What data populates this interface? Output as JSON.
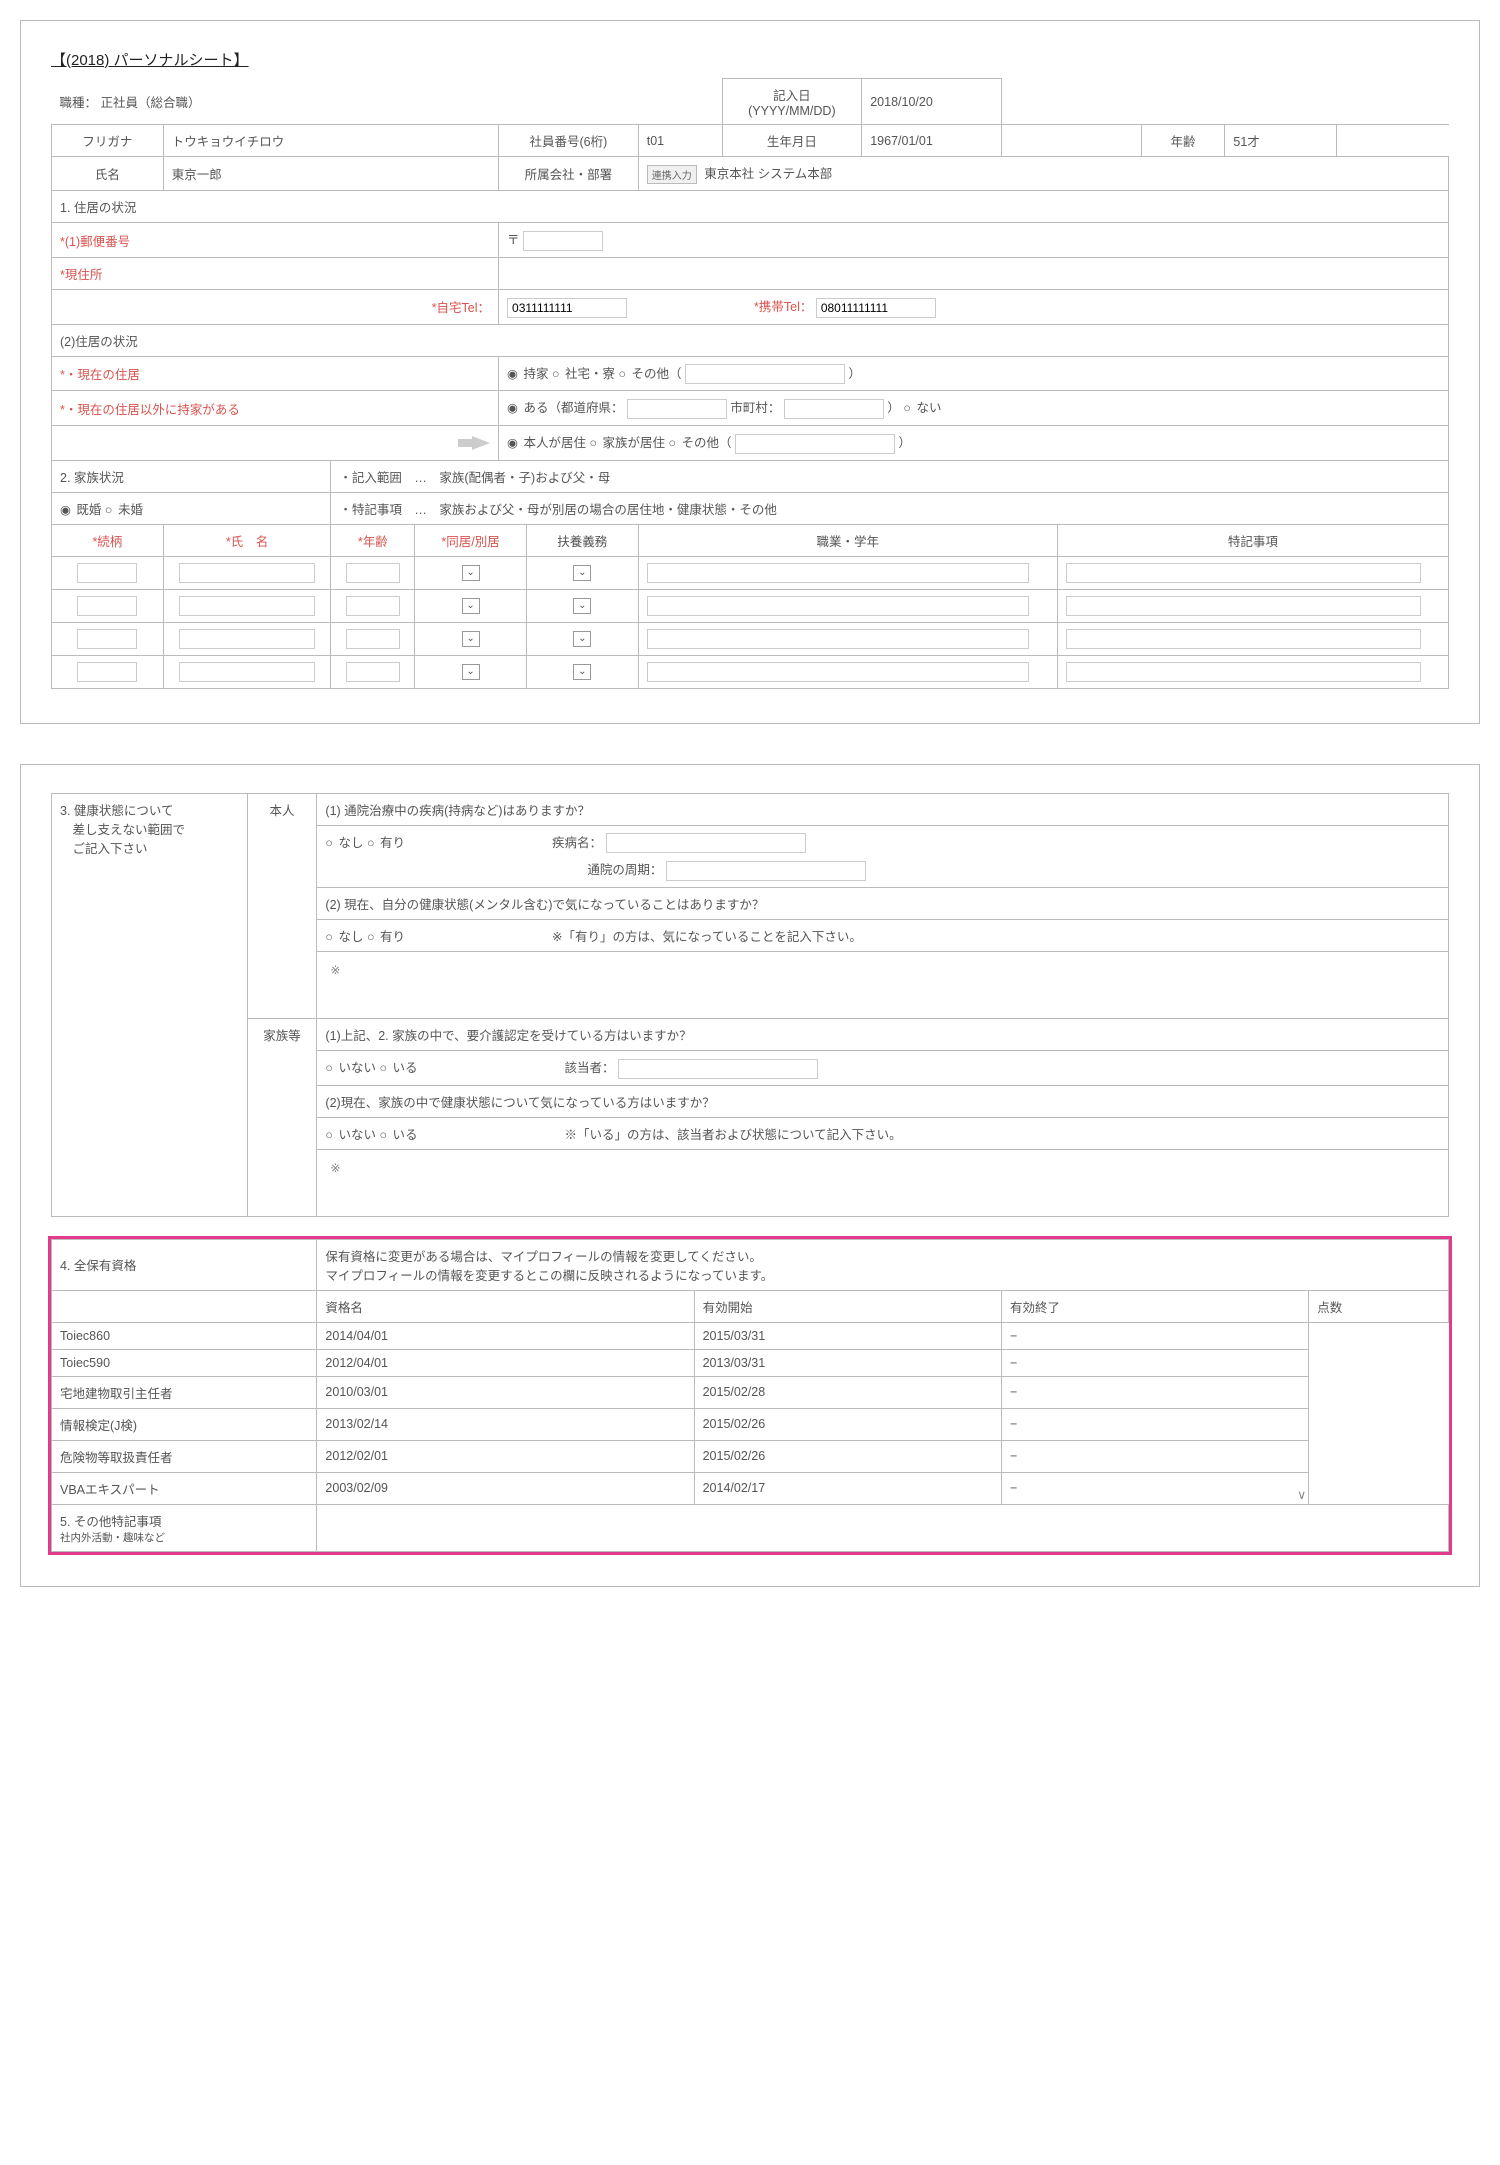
{
  "doc_title": "【(2018) パーソナルシート】",
  "header": {
    "shokushu_label": "職種：",
    "shokushu_value": "正社員（総合職）",
    "kinyubi_label": "記入日\n(YYYY/MM/DD)",
    "kinyubi_value": "2018/10/20",
    "furigana_label": "フリガナ",
    "furigana_value": "トウキョウイチロウ",
    "shain_no_label": "社員番号(6桁)",
    "shain_no_value": "t01",
    "seinengappi_label": "生年月日",
    "seinengappi_value": "1967/01/01",
    "nenrei_label": "年齢",
    "nenrei_value": "51才",
    "shimei_label": "氏名",
    "shimei_value": "東京一郎",
    "shozoku_label": "所属会社・部署",
    "renkei_tag": "連携入力",
    "shozoku_value": "東京本社 システム本部"
  },
  "s1": {
    "title": "1. 住居の状況",
    "yubin_label": "*(1)郵便番号",
    "yubin_prefix": "〒",
    "genjusho_label": "*現住所",
    "jitaku_tel_label": "*自宅Tel：",
    "jitaku_tel_value": "0311111111",
    "keitai_tel_label": "*携帯Tel：",
    "keitai_tel_value": "08011111111",
    "sub_title": "(2)住居の状況",
    "genzai_label": "*・現在の住居",
    "opt_mochiie": "持家",
    "opt_shataku": "社宅・寮",
    "opt_sonota": "その他（",
    "close_paren": "）",
    "mochiie_label": "*・現在の住居以外に持家がある",
    "opt_aru": "ある（都道府県：",
    "shichoson_label": "市町村：",
    "opt_nai": "ない",
    "kyoju_opt_honnin": "本人が居住",
    "kyoju_opt_kazoku": "家族が居住",
    "kyoju_opt_sonota": "その他（"
  },
  "s2": {
    "title": "2. 家族状況",
    "note1": "・記入範囲　…　家族(配偶者・子)および父・母",
    "opt_kikon": "既婚",
    "opt_mikon": "未婚",
    "note2": "・特記事項　…　家族および父・母が別居の場合の居住地・健康状態・その他",
    "th_zokugara": "*続柄",
    "th_shimei": "*氏　名",
    "th_nenrei": "*年齢",
    "th_doukyo": "*同居/別居",
    "th_fuyou": "扶養義務",
    "th_shokugyo": "職業・学年",
    "th_tokki": "特記事項"
  },
  "s3": {
    "title": "3. 健康状態について\n　差し支えない範囲で\n　ご記入下さい",
    "col_honnin": "本人",
    "col_kazoku": "家族等",
    "q1": "(1) 通院治療中の疾病(持病など)はありますか？",
    "opt_nashi": "なし",
    "opt_ari": "有り",
    "shippeimei_label": "疾病名：",
    "tsuuin_label": "通院の周期：",
    "q2": "(2) 現在、自分の健康状態(メンタル含む)で気になっていることはありますか？",
    "q2_note": "※「有り」の方は、気になっていることを記入下さい。",
    "note_mark": "※",
    "q3": "(1)上記、2. 家族の中で、要介護認定を受けている方はいますか？",
    "opt_inai": "いない",
    "opt_iru": "いる",
    "gaitousya_label": "該当者：",
    "q4": "(2)現在、家族の中で健康状態について気になっている方はいますか？",
    "q4_note": "※「いる」の方は、該当者および状態について記入下さい。"
  },
  "s4": {
    "title": "4. 全保有資格",
    "note": "保有資格に変更がある場合は、マイプロフィールの情報を変更してください。\nマイプロフィールの情報を変更するとこの欄に反映されるようになっています。",
    "th_name": "資格名",
    "th_start": "有効開始",
    "th_end": "有効終了",
    "th_score": "点数",
    "rows": [
      {
        "n": "Toiec860",
        "s": "2014/04/01",
        "e": "2015/03/31",
        "p": "−"
      },
      {
        "n": "Toiec590",
        "s": "2012/04/01",
        "e": "2013/03/31",
        "p": "−"
      },
      {
        "n": "宅地建物取引主任者",
        "s": "2010/03/01",
        "e": "2015/02/28",
        "p": "−"
      },
      {
        "n": "情報検定(J検)",
        "s": "2013/02/14",
        "e": "2015/02/26",
        "p": "−"
      },
      {
        "n": "危険物等取扱責任者",
        "s": "2012/02/01",
        "e": "2015/02/26",
        "p": "−"
      },
      {
        "n": "VBAエキスパート",
        "s": "2003/02/09",
        "e": "2014/02/17",
        "p": "−"
      }
    ]
  },
  "s5": {
    "title": "5. その他特記事項",
    "sub": "社内外活動・趣味など"
  }
}
